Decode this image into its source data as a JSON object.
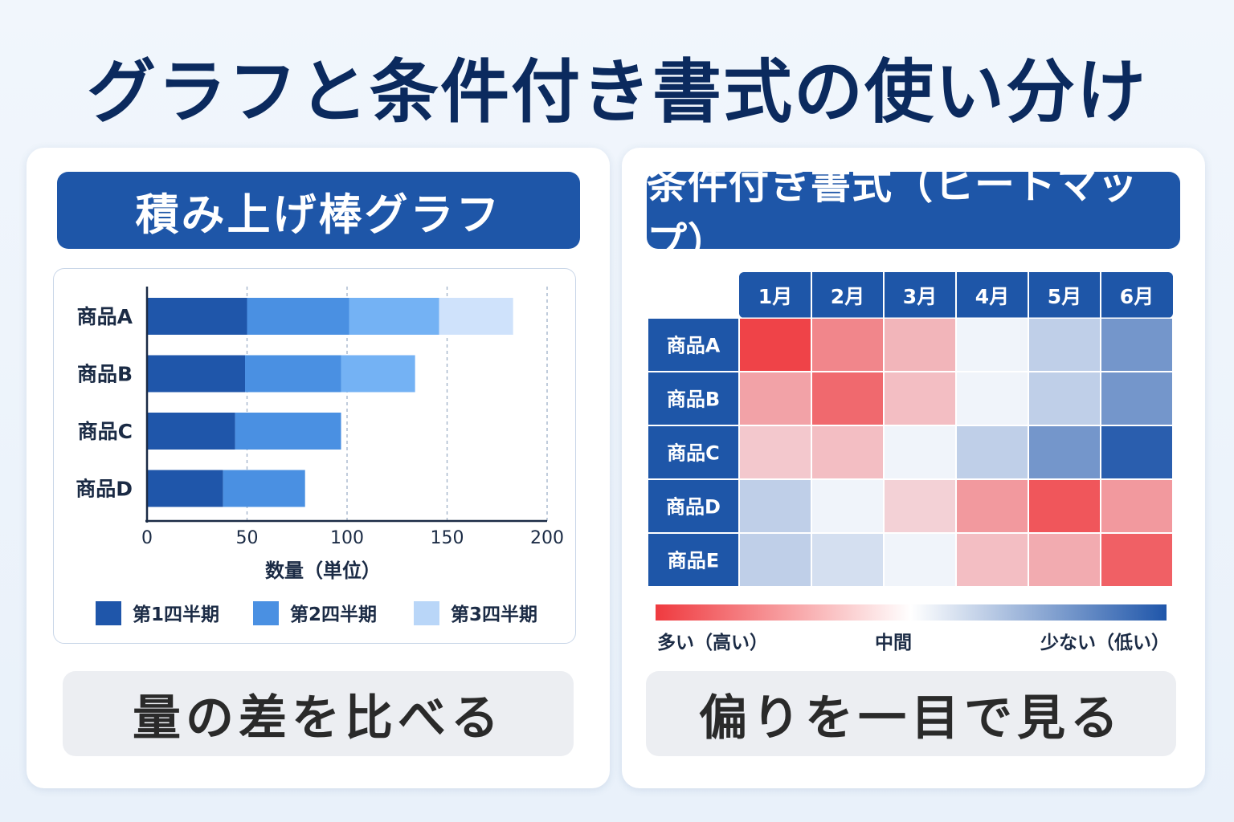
{
  "title": "グラフと条件付き書式の使い分け",
  "left_panel": {
    "header": "積み上げ棒グラフ",
    "footer": "量の差を比べる"
  },
  "right_panel": {
    "header": "条件付き書式（ヒートマップ）",
    "footer": "偏りを一目で見る",
    "scale_labels": {
      "high": "多い（高い）",
      "mid": "中間",
      "low": "少ない（低い）"
    }
  },
  "colors": {
    "q1": "#1f56aa",
    "q2": "#4a90e2",
    "q3": "#74b2f4",
    "q4": "#cfe2fb",
    "header_bg": "#1e56a8",
    "heat_high": "#ef3a3f",
    "heat_mid": "#f4f7fc",
    "heat_low": "#1f56aa"
  },
  "chart_data": [
    {
      "type": "bar",
      "orientation": "horizontal",
      "stacked": true,
      "categories": [
        "商品A",
        "商品B",
        "商品C",
        "商品D"
      ],
      "series": [
        {
          "name": "第1四半期",
          "values": [
            50,
            49,
            44,
            38
          ]
        },
        {
          "name": "第2四半期",
          "values": [
            51,
            48,
            53,
            41
          ]
        },
        {
          "name": "第3四半期",
          "values": [
            45,
            37,
            0,
            0
          ]
        },
        {
          "name": "",
          "values": [
            37,
            0,
            0,
            0
          ]
        }
      ],
      "xlabel": "数量（単位）",
      "xlim": [
        0,
        200
      ],
      "xticks": [
        0,
        50,
        100,
        150,
        200
      ],
      "grid": "vertical dashed",
      "legend": "bottom",
      "legend_entries": [
        "第1四半期",
        "第2四半期",
        "第3四半期"
      ]
    },
    {
      "type": "heatmap",
      "columns": [
        "1月",
        "2月",
        "3月",
        "4月",
        "5月",
        "6月"
      ],
      "rows": [
        "商品A",
        "商品B",
        "商品C",
        "商品D",
        "商品E"
      ],
      "scale": "diverging: -1 = 多い（高い）, 0 = 中間, 1 = 少ない（低い）",
      "values": [
        [
          -0.95,
          -0.6,
          -0.35,
          0.02,
          0.25,
          0.6
        ],
        [
          -0.45,
          -0.75,
          -0.3,
          0.02,
          0.25,
          0.6
        ],
        [
          -0.25,
          -0.3,
          0.02,
          0.25,
          0.6,
          0.95
        ],
        [
          0.25,
          0.02,
          -0.2,
          -0.5,
          -0.85,
          -0.5
        ],
        [
          0.25,
          0.15,
          0.02,
          -0.3,
          -0.4,
          -0.8
        ]
      ],
      "legend": "bottom color bar"
    }
  ]
}
